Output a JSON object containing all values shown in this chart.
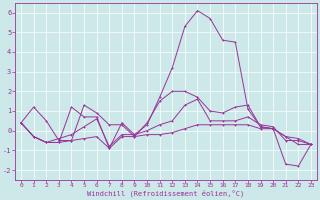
{
  "xlabel": "Windchill (Refroidissement éolien,°C)",
  "background_color": "#cce8e8",
  "grid_color": "#ffffff",
  "line_color": "#993399",
  "x": [
    0,
    1,
    2,
    3,
    4,
    5,
    6,
    7,
    8,
    9,
    10,
    11,
    12,
    13,
    14,
    15,
    16,
    17,
    18,
    19,
    20,
    21,
    22,
    23
  ],
  "line1": [
    0.4,
    -0.3,
    -0.6,
    -0.6,
    1.2,
    0.7,
    0.7,
    -0.9,
    0.4,
    -0.2,
    0.3,
    1.7,
    3.2,
    5.3,
    6.1,
    5.7,
    4.6,
    4.5,
    1.1,
    0.2,
    0.1,
    -1.7,
    -1.8,
    -0.7
  ],
  "line2": [
    0.4,
    -0.3,
    -0.6,
    -0.4,
    -0.2,
    0.2,
    0.6,
    -0.8,
    -0.2,
    -0.2,
    0.0,
    0.3,
    0.5,
    1.3,
    1.6,
    0.5,
    0.5,
    0.5,
    0.7,
    0.3,
    0.2,
    -0.5,
    -0.5,
    -0.7
  ],
  "line3": [
    0.4,
    -0.3,
    -0.6,
    -0.6,
    -0.5,
    -0.4,
    -0.3,
    -0.9,
    -0.3,
    -0.3,
    -0.2,
    -0.2,
    -0.1,
    0.1,
    0.3,
    0.3,
    0.3,
    0.3,
    0.3,
    0.1,
    0.1,
    -0.3,
    -0.4,
    -0.7
  ],
  "line4": [
    0.4,
    1.2,
    0.5,
    -0.5,
    -0.5,
    1.3,
    0.9,
    0.3,
    0.3,
    -0.3,
    0.4,
    1.5,
    2.0,
    2.0,
    1.7,
    1.0,
    0.9,
    1.2,
    1.3,
    0.2,
    0.1,
    -0.3,
    -0.7,
    -0.7
  ],
  "ylim": [
    -2.5,
    6.5
  ],
  "xlim": [
    -0.5,
    23.5
  ],
  "yticks": [
    -2,
    -1,
    0,
    1,
    2,
    3,
    4,
    5,
    6
  ],
  "xticks": [
    0,
    1,
    2,
    3,
    4,
    5,
    6,
    7,
    8,
    9,
    10,
    11,
    12,
    13,
    14,
    15,
    16,
    17,
    18,
    19,
    20,
    21,
    22,
    23
  ],
  "tick_labelsize": 4.5,
  "xlabel_fontsize": 5.0,
  "lw": 0.7,
  "ms": 2.0
}
